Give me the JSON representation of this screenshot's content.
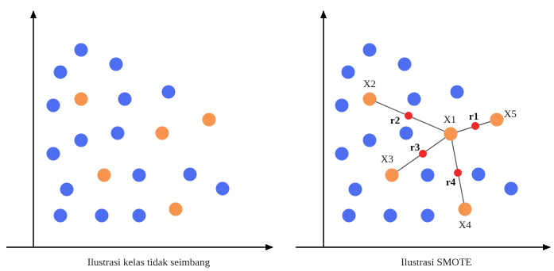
{
  "colors": {
    "majority": "#4d6ef0",
    "minority": "#f7944f",
    "synthetic": "#ee2a2a",
    "axis": "#000000",
    "line": "#555555"
  },
  "left_panel": {
    "caption": "Ilustrasi kelas tidak seimbang"
  },
  "right_panel": {
    "caption": "Ilustrasi SMOTE",
    "labels": {
      "x1": "X1",
      "x2": "X2",
      "x3": "X3",
      "x4": "X4",
      "x5": "X5",
      "r1": "r1",
      "r2": "r2",
      "r3": "r3",
      "r4": "r4"
    }
  }
}
